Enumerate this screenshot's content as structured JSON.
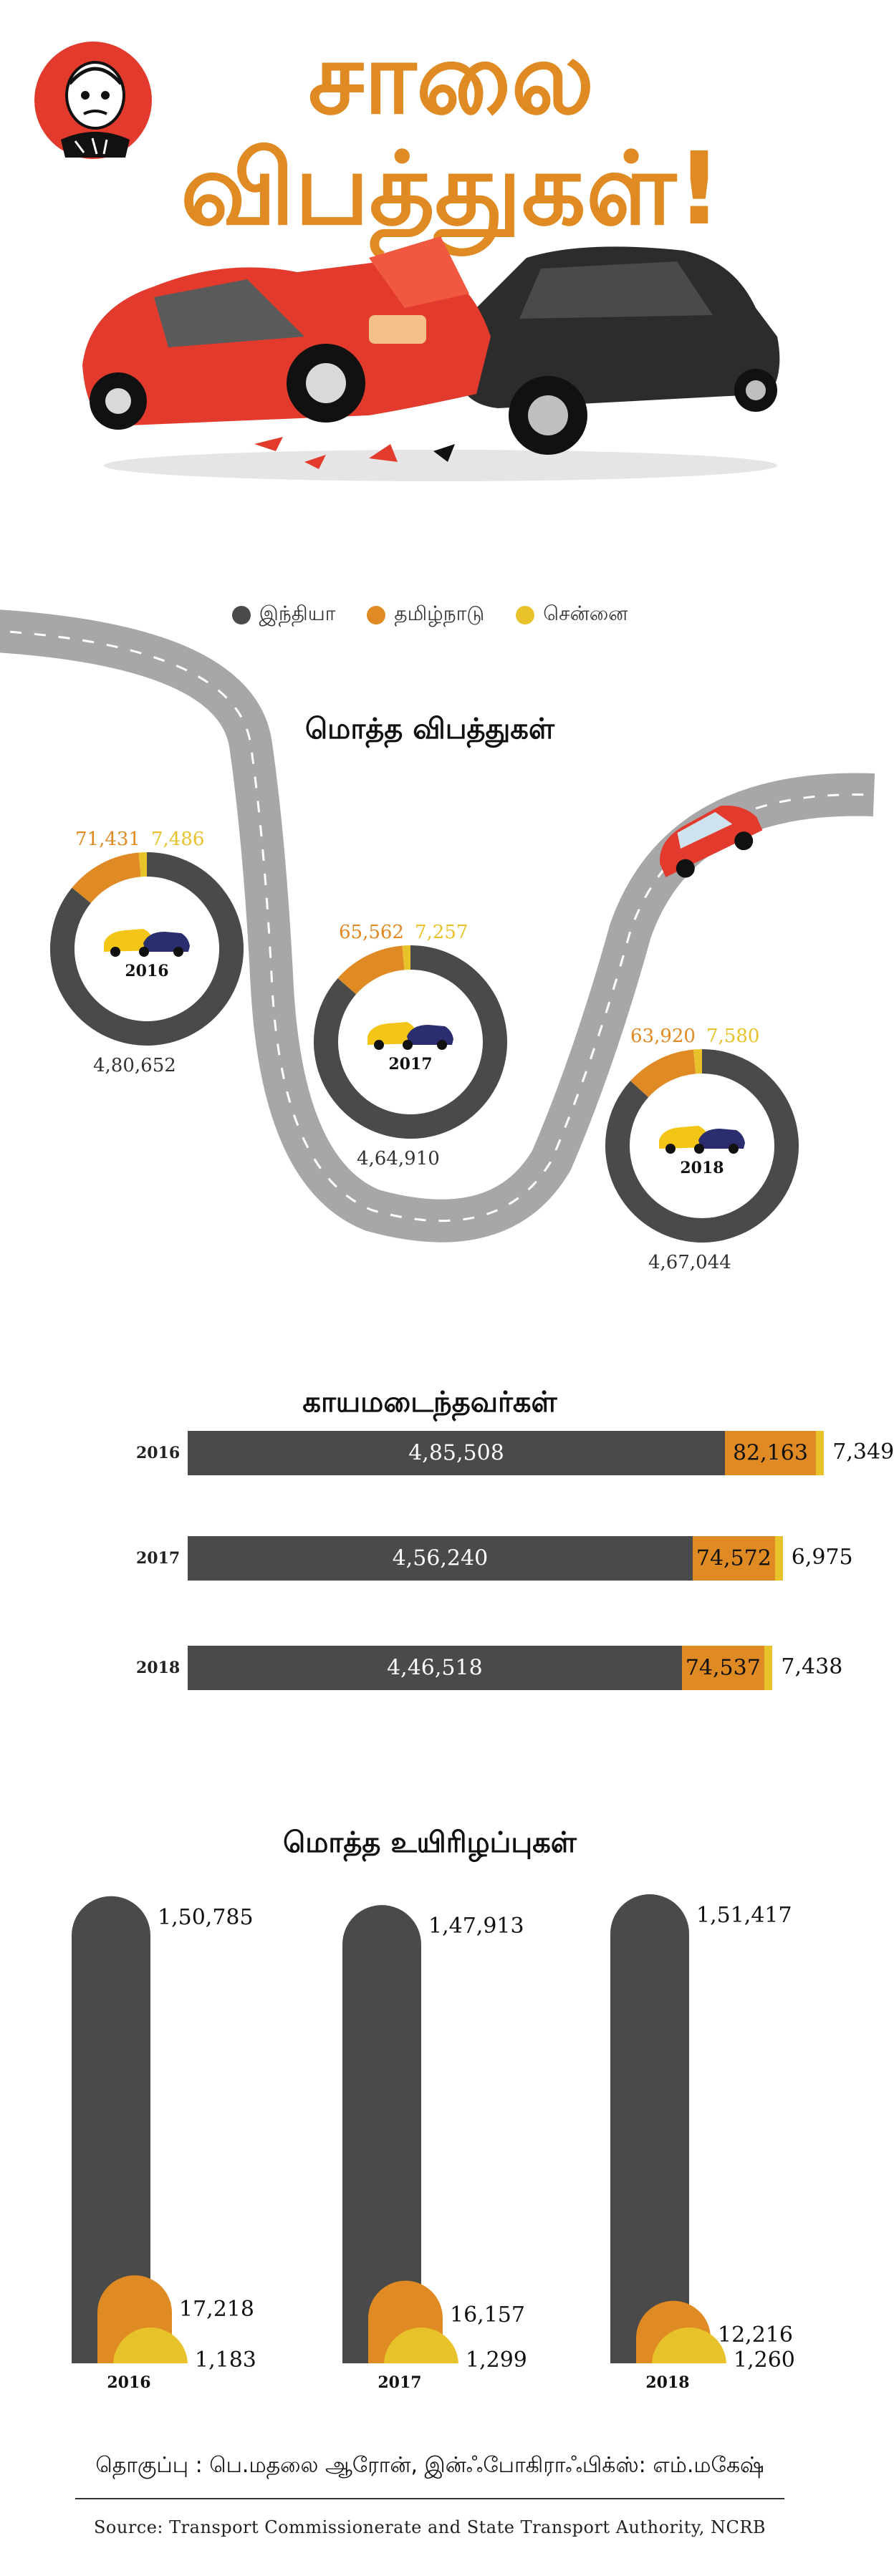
{
  "header": {
    "title_line1": "சாலை",
    "title_line2": "விபத்துகள்!",
    "logo_name": "cartoonist-logo"
  },
  "legend": {
    "items": [
      {
        "label": "இந்தியா",
        "color": "#4a4a4a"
      },
      {
        "label": "தமிழ்நாடு",
        "color": "#e08a24"
      },
      {
        "label": "சென்னை",
        "color": "#e8c22a"
      }
    ]
  },
  "colors": {
    "india": "#4a4a4a",
    "tamilnadu": "#e08a24",
    "chennai": "#e8c22a",
    "road": "#a7a7a7"
  },
  "chart_data": [
    {
      "type": "pie",
      "title": "மொத்த விபத்துகள்",
      "categories": [
        "2016",
        "2017",
        "2018"
      ],
      "series": [
        {
          "name": "இந்தியா",
          "values": [
            480652,
            464910,
            467044
          ],
          "labels": [
            "4,80,652",
            "4,64,910",
            "4,67,044"
          ]
        },
        {
          "name": "தமிழ்நாடு",
          "values": [
            71431,
            65562,
            63920
          ],
          "labels": [
            "71,431",
            "65,562",
            "63,920"
          ]
        },
        {
          "name": "சென்னை",
          "values": [
            7486,
            7257,
            7580
          ],
          "labels": [
            "7,486",
            "7,257",
            "7,580"
          ]
        }
      ]
    },
    {
      "type": "bar",
      "orientation": "horizontal-stacked",
      "title": "காயமடைந்தவர்கள்",
      "categories": [
        "2016",
        "2017",
        "2018"
      ],
      "series": [
        {
          "name": "இந்தியா",
          "values": [
            485508,
            456240,
            446518
          ],
          "labels": [
            "4,85,508",
            "4,56,240",
            "4,46,518"
          ]
        },
        {
          "name": "தமிழ்நாடு",
          "values": [
            82163,
            74572,
            74537
          ],
          "labels": [
            "82,163",
            "74,572",
            "74,537"
          ]
        },
        {
          "name": "சென்னை",
          "values": [
            7349,
            6975,
            7438
          ],
          "labels": [
            "7,349",
            "6,975",
            "7,438"
          ]
        }
      ]
    },
    {
      "type": "bar",
      "orientation": "vertical-overlapped",
      "title": "மொத்த உயிரிழப்புகள்",
      "categories": [
        "2016",
        "2017",
        "2018"
      ],
      "series": [
        {
          "name": "இந்தியா",
          "values": [
            150785,
            147913,
            151417
          ],
          "labels": [
            "1,50,785",
            "1,47,913",
            "1,51,417"
          ]
        },
        {
          "name": "தமிழ்நாடு",
          "values": [
            17218,
            16157,
            12216
          ],
          "labels": [
            "17,218",
            "16,157",
            "12,216"
          ]
        },
        {
          "name": "சென்னை",
          "values": [
            1183,
            1299,
            1260
          ],
          "labels": [
            "1,183",
            "1,299",
            "1,260"
          ]
        }
      ]
    }
  ],
  "footer": {
    "credit": "தொகுப்பு : பெ.மதலை ஆரோன், இன்ஃபோகிராஃபிக்ஸ்: எம்.மகேஷ்",
    "source": "Source: Transport Commissionerate and State Transport Authority, NCRB"
  }
}
